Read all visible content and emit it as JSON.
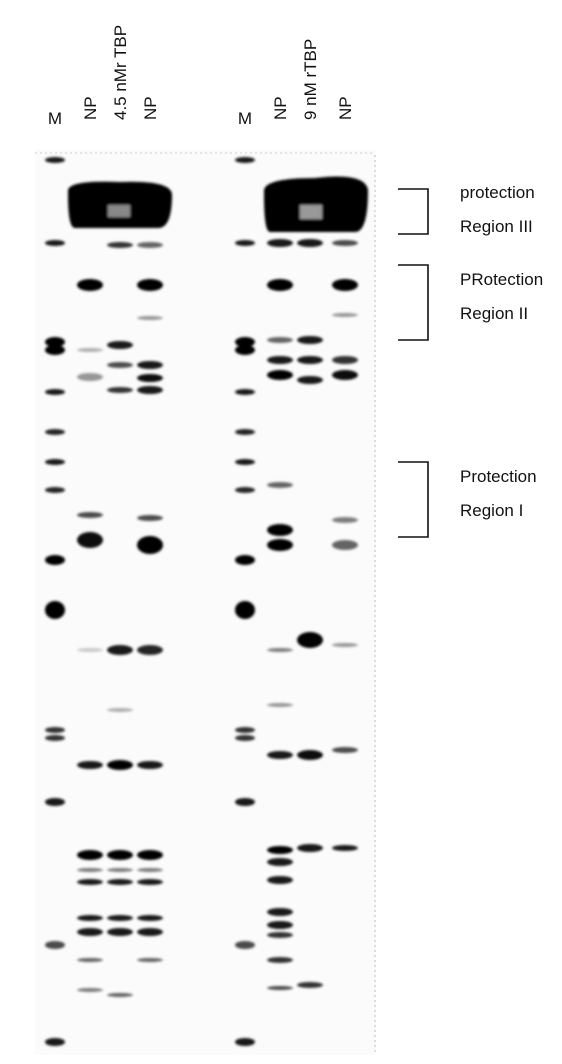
{
  "lane_labels": [
    "M",
    "NP",
    "4.5 nMr TBP",
    "NP",
    "M",
    "NP",
    "9 nM rTBP",
    "NP"
  ],
  "regions": [
    {
      "line1": "protection",
      "line2": "Region III"
    },
    {
      "line1": "PRotection",
      "line2": "Region II"
    },
    {
      "line1": "Protection",
      "line2": "Region I"
    }
  ]
}
